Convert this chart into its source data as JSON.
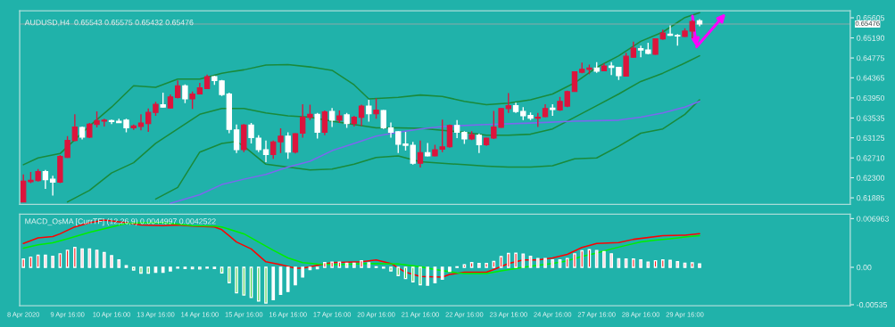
{
  "chart_data": [
    {
      "type": "candlestick",
      "title": "AUDUSD,H4  0.65543 0.65575 0.65432 0.65476",
      "categories": [
        "8 Apr 2020",
        null,
        null,
        null,
        null,
        null,
        "9 Apr 16:00",
        null,
        null,
        null,
        null,
        null,
        "10 Apr 16:00",
        null,
        null,
        null,
        null,
        null,
        "13 Apr 16:00",
        null,
        null,
        null,
        null,
        null,
        "14 Apr 16:00",
        null,
        null,
        null,
        null,
        null,
        "15 Apr 16:00",
        null,
        null,
        null,
        null,
        null,
        "16 Apr 16:00",
        null,
        null,
        null,
        null,
        null,
        "17 Apr 16:00",
        null,
        null,
        null,
        null,
        null,
        "20 Apr 16:00",
        null,
        null,
        null,
        null,
        null,
        "21 Apr 16:00",
        null,
        null,
        null,
        null,
        null,
        "22 Apr 16:00",
        null,
        null,
        null,
        null,
        null,
        "23 Apr 16:00",
        null,
        null,
        null,
        null,
        null,
        "24 Apr 16:00",
        null,
        null,
        null,
        null,
        null,
        "27 Apr 16:00",
        null,
        null,
        null,
        null,
        null,
        "28 Apr 16:00",
        null,
        null,
        null,
        null,
        null,
        "29 Apr 16:00",
        null,
        null,
        null,
        null,
        null,
        null,
        null,
        null,
        null,
        null,
        null,
        null,
        null,
        null,
        null,
        null,
        null,
        null,
        null,
        null,
        null,
        null
      ],
      "ohlc": [
        [
          0.618,
          0.6237,
          0.618,
          0.6223
        ],
        [
          0.6222,
          0.6242,
          0.6219,
          0.6225
        ],
        [
          0.6224,
          0.6248,
          0.6222,
          0.6243
        ],
        [
          0.6243,
          0.6246,
          0.6207,
          0.6226
        ],
        [
          0.6227,
          0.6234,
          0.6193,
          0.6221
        ],
        [
          0.6221,
          0.6277,
          0.6219,
          0.6274
        ],
        [
          0.6272,
          0.6316,
          0.6271,
          0.6307
        ],
        [
          0.6307,
          0.6361,
          0.6305,
          0.6335
        ],
        [
          0.6334,
          0.6336,
          0.6309,
          0.6314
        ],
        [
          0.6314,
          0.6343,
          0.6312,
          0.6341
        ],
        [
          0.634,
          0.6367,
          0.6334,
          0.6348
        ],
        [
          0.6347,
          0.6352,
          0.6336,
          0.6349
        ],
        [
          0.6348,
          0.635,
          0.6341,
          0.6346
        ],
        [
          0.6347,
          0.6352,
          0.6343,
          0.6344
        ],
        [
          0.6349,
          0.6352,
          0.6324,
          0.6333
        ],
        [
          0.6333,
          0.634,
          0.6329,
          0.6337
        ],
        [
          0.6336,
          0.6361,
          0.6328,
          0.6343
        ],
        [
          0.6342,
          0.6373,
          0.6325,
          0.6365
        ],
        [
          0.6365,
          0.6387,
          0.6358,
          0.6382
        ],
        [
          0.6381,
          0.6406,
          0.6375,
          0.6376
        ],
        [
          0.6374,
          0.6402,
          0.6373,
          0.6397
        ],
        [
          0.6396,
          0.6431,
          0.6394,
          0.642
        ],
        [
          0.642,
          0.6423,
          0.6384,
          0.6393
        ],
        [
          0.6393,
          0.6408,
          0.6372,
          0.6403
        ],
        [
          0.6403,
          0.6426,
          0.6402,
          0.6416
        ],
        [
          0.6414,
          0.6443,
          0.6413,
          0.6439
        ],
        [
          0.6439,
          0.6441,
          0.6422,
          0.6431
        ],
        [
          0.643,
          0.6432,
          0.6399,
          0.6402
        ],
        [
          0.6403,
          0.6406,
          0.6322,
          0.633
        ],
        [
          0.6329,
          0.634,
          0.6281,
          0.6288
        ],
        [
          0.6288,
          0.6341,
          0.6283,
          0.6339
        ],
        [
          0.6339,
          0.6343,
          0.6301,
          0.6313
        ],
        [
          0.6312,
          0.6318,
          0.6283,
          0.6288
        ],
        [
          0.6288,
          0.6307,
          0.6262,
          0.6278
        ],
        [
          0.6278,
          0.6307,
          0.6269,
          0.6304
        ],
        [
          0.6304,
          0.6332,
          0.6281,
          0.6316
        ],
        [
          0.6316,
          0.6324,
          0.6269,
          0.6283
        ],
        [
          0.6283,
          0.6322,
          0.628,
          0.6321
        ],
        [
          0.6322,
          0.6382,
          0.6313,
          0.6355
        ],
        [
          0.6355,
          0.6381,
          0.6349,
          0.6361
        ],
        [
          0.6361,
          0.6364,
          0.6311,
          0.6324
        ],
        [
          0.6324,
          0.6369,
          0.6318,
          0.6366
        ],
        [
          0.6367,
          0.6374,
          0.6335,
          0.6349
        ],
        [
          0.6349,
          0.6369,
          0.6343,
          0.6358
        ],
        [
          0.636,
          0.6364,
          0.6333,
          0.6342
        ],
        [
          0.6342,
          0.6358,
          0.6336,
          0.6355
        ],
        [
          0.6355,
          0.6381,
          0.6337,
          0.6378
        ],
        [
          0.6378,
          0.6391,
          0.6346,
          0.6362
        ],
        [
          0.6362,
          0.6394,
          0.6352,
          0.637
        ],
        [
          0.6369,
          0.637,
          0.6331,
          0.6333
        ],
        [
          0.6333,
          0.6344,
          0.6313,
          0.6324
        ],
        [
          0.6325,
          0.6326,
          0.6281,
          0.6299
        ],
        [
          0.63,
          0.6325,
          0.6286,
          0.6297
        ],
        [
          0.6297,
          0.6304,
          0.6257,
          0.626
        ],
        [
          0.626,
          0.6307,
          0.6251,
          0.6282
        ],
        [
          0.6282,
          0.6302,
          0.6274,
          0.6275
        ],
        [
          0.6275,
          0.6298,
          0.6274,
          0.6288
        ],
        [
          0.6289,
          0.635,
          0.6283,
          0.6294
        ],
        [
          0.6294,
          0.634,
          0.6292,
          0.6338
        ],
        [
          0.6338,
          0.6349,
          0.6312,
          0.6324
        ],
        [
          0.6324,
          0.6326,
          0.63,
          0.631
        ],
        [
          0.631,
          0.6326,
          0.6308,
          0.6319
        ],
        [
          0.6318,
          0.6321,
          0.6281,
          0.6298
        ],
        [
          0.6298,
          0.6313,
          0.6296,
          0.6312
        ],
        [
          0.6312,
          0.6368,
          0.631,
          0.6335
        ],
        [
          0.6334,
          0.6374,
          0.6333,
          0.6373
        ],
        [
          0.6373,
          0.6405,
          0.6364,
          0.6379
        ],
        [
          0.6379,
          0.6385,
          0.6364,
          0.6367
        ],
        [
          0.6367,
          0.6376,
          0.6349,
          0.6358
        ],
        [
          0.6359,
          0.6365,
          0.6349,
          0.6353
        ],
        [
          0.6353,
          0.6364,
          0.6335,
          0.6355
        ],
        [
          0.6356,
          0.6382,
          0.6355,
          0.6373
        ],
        [
          0.6374,
          0.6382,
          0.6358,
          0.6371
        ],
        [
          0.637,
          0.6397,
          0.6368,
          0.6388
        ],
        [
          0.6378,
          0.641,
          0.6376,
          0.6408
        ],
        [
          0.6408,
          0.645,
          0.6408,
          0.6449
        ],
        [
          0.6448,
          0.6468,
          0.6446,
          0.6454
        ],
        [
          0.6454,
          0.6464,
          0.6444,
          0.6457
        ],
        [
          0.6457,
          0.6469,
          0.6447,
          0.645
        ],
        [
          0.6451,
          0.6466,
          0.645,
          0.6461
        ],
        [
          0.6461,
          0.6469,
          0.6442,
          0.6458
        ],
        [
          0.6458,
          0.6459,
          0.6432,
          0.6441
        ],
        [
          0.644,
          0.6488,
          0.6439,
          0.6481
        ],
        [
          0.6479,
          0.6511,
          0.6478,
          0.6498
        ],
        [
          0.6497,
          0.6503,
          0.6479,
          0.6494
        ],
        [
          0.6494,
          0.6509,
          0.6485,
          0.6487
        ],
        [
          0.6485,
          0.6518,
          0.6484,
          0.6517
        ],
        [
          0.6517,
          0.6536,
          0.6515,
          0.6529
        ],
        [
          0.6527,
          0.6545,
          0.6523,
          0.6524
        ],
        [
          0.6524,
          0.6527,
          0.6503,
          0.6523
        ],
        [
          0.6522,
          0.6539,
          0.6521,
          0.6533
        ],
        [
          0.6533,
          0.6556,
          0.6518,
          0.6553
        ],
        [
          0.65543,
          0.65575,
          0.65432,
          0.65476
        ],
        null,
        null,
        null,
        null,
        null,
        null,
        null,
        null,
        null,
        null,
        null,
        null,
        null,
        null,
        null,
        null,
        null,
        null,
        null,
        null
      ],
      "colors": [
        "#dc143c",
        "#dc143c",
        "#dc143c",
        "#ffffff",
        "#ffffff",
        "#dc143c",
        "#dc143c",
        "#dc143c",
        "#ffffff",
        "#dc143c",
        "#dc143c",
        "#dc143c",
        "#ffffff",
        "#ffffff",
        "#ffffff",
        "#dc143c",
        "#dc143c",
        "#dc143c",
        "#dc143c",
        "#ffffff",
        "#dc143c",
        "#dc143c",
        "#ffffff",
        "#dc143c",
        "#dc143c",
        "#dc143c",
        "#ffffff",
        "#ffffff",
        "#ffffff",
        "#ffffff",
        "#dc143c",
        "#ffffff",
        "#ffffff",
        "#ffffff",
        "#dc143c",
        "#dc143c",
        "#ffffff",
        "#dc143c",
        "#dc143c",
        "#dc143c",
        "#ffffff",
        "#dc143c",
        "#ffffff",
        "#dc143c",
        "#ffffff",
        "#dc143c",
        "#dc143c",
        "#ffffff",
        "#dc143c",
        "#ffffff",
        "#ffffff",
        "#ffffff",
        "#ffffff",
        "#ffffff",
        "#dc143c",
        "#ffffff",
        "#dc143c",
        "#dc143c",
        "#dc143c",
        "#ffffff",
        "#ffffff",
        "#dc143c",
        "#ffffff",
        "#dc143c",
        "#dc143c",
        "#dc143c",
        "#dc143c",
        "#ffffff",
        "#ffffff",
        "#ffffff",
        "#dc143c",
        "#dc143c",
        "#ffffff",
        "#dc143c",
        "#dc143c",
        "#dc143c",
        "#dc143c",
        "#dc143c",
        "#ffffff",
        "#dc143c",
        "#ffffff",
        "#ffffff",
        "#dc143c",
        "#dc143c",
        "#ffffff",
        "#ffffff",
        "#dc143c",
        "#dc143c",
        "#ffffff",
        "#ffffff",
        "#dc143c",
        "#dc143c",
        "#ffffff",
        null,
        null,
        null,
        null,
        null,
        null,
        null,
        null,
        null,
        null,
        null,
        null,
        null,
        null,
        null,
        null,
        null,
        null,
        null,
        null
      ],
      "series": [
        {
          "type": "line",
          "color": "#1a8a3a",
          "values": [
            0.6257,
            null,
            0.6271,
            null,
            null,
            0.628,
            null,
            null,
            null,
            0.6337,
            null,
            null,
            0.6376,
            null,
            null,
            0.642,
            null,
            null,
            0.6417,
            null,
            null,
            0.6434,
            null,
            null,
            0.6434,
            null,
            null,
            0.6446,
            null,
            null,
            0.6453,
            null,
            null,
            0.6463,
            null,
            null,
            0.6464,
            null,
            null,
            0.6459,
            null,
            null,
            0.6452,
            null,
            null,
            0.6422,
            null,
            0.6393,
            null,
            null,
            null,
            0.6396,
            null,
            null,
            0.6401,
            null,
            null,
            0.6398,
            null,
            null,
            0.6388,
            null,
            null,
            0.6381,
            null,
            null,
            0.6384,
            null,
            null,
            0.6391,
            null,
            null,
            0.6403,
            null,
            null,
            0.6426,
            null,
            null,
            0.6458,
            null,
            null,
            0.6482,
            null,
            null,
            0.6512,
            null,
            null,
            0.6531,
            null,
            null,
            0.6561,
            null,
            0.6571,
            null,
            null,
            null,
            null,
            null,
            null,
            null,
            null,
            null,
            null,
            null,
            null,
            null,
            null,
            null,
            null,
            null,
            null,
            null,
            null
          ]
        },
        {
          "type": "line",
          "color": "#1a8a3a",
          "values": [
            null,
            null,
            null,
            null,
            null,
            null,
            0.618,
            null,
            null,
            0.6204,
            null,
            null,
            0.624,
            null,
            null,
            0.6261,
            null,
            null,
            0.6301,
            null,
            null,
            0.6331,
            null,
            null,
            0.6361,
            null,
            null,
            0.6373,
            null,
            null,
            0.6373,
            null,
            null,
            0.6364,
            null,
            null,
            0.6358,
            null,
            null,
            0.6355,
            null,
            null,
            0.6347,
            null,
            null,
            0.634,
            null,
            null,
            0.6333,
            null,
            null,
            0.6333,
            null,
            null,
            0.6332,
            null,
            null,
            0.6328,
            null,
            null,
            0.6324,
            null,
            null,
            0.6318,
            null,
            null,
            0.6318,
            null,
            null,
            0.632,
            null,
            null,
            0.6331,
            null,
            null,
            0.6355,
            null,
            null,
            0.6379,
            null,
            null,
            0.6403,
            null,
            null,
            0.6429,
            null,
            null,
            0.6446,
            null,
            null,
            0.6467,
            null,
            0.6482,
            null,
            null,
            null,
            null,
            null,
            null,
            null,
            null,
            null,
            null,
            null,
            null,
            null,
            null,
            null,
            null,
            null,
            null,
            null,
            null
          ]
        },
        {
          "type": "line",
          "color": "#1a8a3a",
          "values": [
            null,
            null,
            null,
            null,
            null,
            null,
            null,
            null,
            null,
            null,
            null,
            null,
            null,
            null,
            null,
            null,
            null,
            null,
            0.6186,
            null,
            null,
            0.621,
            null,
            null,
            0.6283,
            null,
            null,
            0.6301,
            null,
            0.6305,
            0.6295,
            null,
            null,
            0.6258,
            null,
            null,
            0.6252,
            null,
            null,
            0.6246,
            null,
            null,
            0.6248,
            null,
            null,
            0.6258,
            null,
            null,
            0.6272,
            null,
            null,
            0.6275,
            null,
            null,
            0.6263,
            null,
            null,
            0.626,
            null,
            null,
            0.6257,
            null,
            null,
            0.6254,
            null,
            null,
            0.6252,
            null,
            null,
            0.6252,
            null,
            null,
            0.6255,
            null,
            null,
            0.6269,
            null,
            null,
            0.6271,
            null,
            null,
            0.6295,
            null,
            null,
            0.6322,
            null,
            null,
            0.6331,
            null,
            null,
            0.6361,
            null,
            0.6391,
            null,
            null,
            null,
            null,
            null,
            null,
            null,
            null,
            null,
            null,
            null,
            null,
            null,
            null,
            null,
            null,
            null,
            null,
            null,
            null
          ]
        },
        {
          "type": "line",
          "color": "#7b68ee",
          "values": [
            null,
            null,
            null,
            null,
            null,
            null,
            null,
            null,
            null,
            null,
            null,
            null,
            null,
            null,
            null,
            null,
            null,
            null,
            null,
            null,
            0.6177,
            null,
            null,
            null,
            0.6195,
            null,
            null,
            0.6216,
            null,
            null,
            0.6227,
            null,
            null,
            0.6237,
            null,
            null,
            0.6252,
            null,
            null,
            0.6264,
            null,
            null,
            0.6286,
            null,
            null,
            0.6301,
            null,
            null,
            0.6316,
            null,
            null,
            0.6324,
            null,
            null,
            0.6331,
            null,
            null,
            0.6336,
            null,
            null,
            null,
            null,
            null,
            0.634,
            null,
            null,
            null,
            null,
            null,
            0.6343,
            null,
            null,
            null,
            null,
            null,
            0.6347,
            null,
            null,
            null,
            null,
            null,
            0.6349,
            null,
            null,
            0.6355,
            null,
            null,
            0.6364,
            null,
            null,
            0.6376,
            null,
            0.6388,
            null,
            null,
            null,
            null,
            null,
            null,
            null,
            null,
            null,
            null,
            null,
            null,
            null,
            null,
            null,
            null,
            null,
            null,
            null,
            null
          ]
        }
      ],
      "ref_lines": [
        {
          "axis": "y",
          "value": 0.65476,
          "label": "0.65476",
          "color": "#8fa8a8"
        }
      ],
      "ylim": [
        0.6175,
        0.6575
      ],
      "yticks": [
        0.61885,
        {
          "value": 0.623,
          "label": "0.62300"
        },
        {
          "value": 0.6271,
          "label": "0.62710"
        },
        0.63125,
        0.63535,
        {
          "value": 0.6395,
          "label": "0.63950"
        },
        0.64365,
        0.64775,
        {
          "value": 0.6519,
          "label": "0.65190"
        },
        0.65605
      ],
      "tick_labels": "y"
    },
    {
      "type": "bar",
      "title": "MACD_OsMA [CurrTF] (12,26,9) 0.0044997 0.0042522",
      "series": [
        {
          "type": "bar",
          "values": [
            0.00118,
            0.00145,
            0.00173,
            0.00173,
            0.00157,
            0.00193,
            0.00244,
            0.00283,
            0.00263,
            0.00263,
            0.00244,
            0.00212,
            0.00165,
            0.00106,
            0.00024,
            -0.00039,
            -0.00083,
            -0.00083,
            -0.00071,
            -0.00071,
            -0.00051,
            -0.0001,
            -0.00016,
            -0.0002,
            -0.00024,
            -0.0001,
            -0.00016,
            -0.00079,
            -0.0022,
            -0.00365,
            -0.00397,
            -0.00432,
            -0.00483,
            -0.00511,
            -0.00464,
            -0.00385,
            -0.00346,
            -0.00248,
            -0.00138,
            -0.00031,
            -0.0002,
            0.00067,
            0.00075,
            0.00075,
            0.00059,
            0.00059,
            0.00094,
            0.00063,
            8e-05,
            -0.0001,
            -0.00051,
            -0.00118,
            -0.00161,
            -0.00208,
            -0.00248,
            -0.00255,
            -0.0022,
            -0.00169,
            -0.00059,
            8e-05,
            0.00035,
            0.00067,
            0.00055,
            0.00055,
            0.00083,
            0.00153,
            0.00197,
            0.002,
            0.00189,
            0.00157,
            0.00126,
            0.00126,
            0.00106,
            0.00106,
            0.00126,
            0.00193,
            0.00236,
            0.00252,
            0.0024,
            0.00224,
            0.00193,
            0.00122,
            0.00118,
            0.00118,
            0.00106,
            0.00075,
            0.00094,
            0.00106,
            0.00098,
            0.00079,
            0.00059,
            0.00063,
            0.00047,
            null,
            null,
            null,
            null,
            null,
            null,
            null,
            null,
            null,
            null,
            null,
            null,
            null,
            null,
            null,
            null,
            null,
            null,
            null,
            null
          ],
          "colors": [
            "#ff0000",
            "#ff0000",
            "#ff0000",
            "#ffc0cb",
            "#ffc0cb",
            "#ff0000",
            "#ff0000",
            "#ff0000",
            "#ffc0cb",
            "#ffc0cb",
            "#ffc0cb",
            "#ffc0cb",
            "#ffc0cb",
            "#ffc0cb",
            "#ffc0cb",
            "#32cd32",
            "#32cd32",
            "#32cd32",
            "#ffffff",
            "#ffffff",
            "#ffffff",
            "#ffffff",
            "#32cd32",
            "#32cd32",
            "#32cd32",
            "#ffffff",
            "#32cd32",
            "#32cd32",
            "#32cd32",
            "#32cd32",
            "#32cd32",
            "#32cd32",
            "#32cd32",
            "#32cd32",
            "#ffffff",
            "#ffffff",
            "#ffffff",
            "#ffffff",
            "#ffffff",
            "#ffffff",
            "#ffffff",
            "#ff0000",
            "#ff0000",
            "#ff0000",
            "#ffc0cb",
            "#ffc0cb",
            "#ff0000",
            "#ffc0cb",
            "#ffc0cb",
            "#ffffff",
            "#32cd32",
            "#32cd32",
            "#32cd32",
            "#32cd32",
            "#32cd32",
            "#ffffff",
            "#ffffff",
            "#ffffff",
            "#ffffff",
            "#ff0000",
            "#ff0000",
            "#ff0000",
            "#ffc0cb",
            "#ff0000",
            "#ff0000",
            "#ff0000",
            "#ff0000",
            "#ff0000",
            "#ffc0cb",
            "#ffc0cb",
            "#ffc0cb",
            "#ffc0cb",
            "#ffc0cb",
            "#ffc0cb",
            "#ff0000",
            "#ff0000",
            "#ff0000",
            "#ff0000",
            "#ffc0cb",
            "#ffc0cb",
            "#ffc0cb",
            "#ffc0cb",
            "#ffc0cb",
            "#ff0000",
            "#ffc0cb",
            "#ffc0cb",
            "#ff0000",
            "#ff0000",
            "#ffc0cb",
            "#ffc0cb",
            "#ffc0cb",
            "#ff0000",
            "#ffc0cb",
            null,
            null,
            null,
            null,
            null,
            null,
            null,
            null,
            null,
            null,
            null,
            null,
            null,
            null,
            null,
            null,
            null,
            null,
            null,
            null
          ]
        },
        {
          "type": "line",
          "color": "#ff0000",
          "values": [
            0.00342,
            null,
            0.0042,
            null,
            0.0044,
            0.0048,
            null,
            0.00578,
            null,
            0.00637,
            null,
            0.00676,
            null,
            null,
            0.00637,
            null,
            0.00605,
            null,
            null,
            0.00597,
            null,
            0.00605,
            null,
            0.0059,
            null,
            null,
            0.00578,
            0.00538,
            null,
            0.00362,
            null,
            0.00263,
            null,
            0.00079,
            null,
            0.00039,
            null,
            -0.00012,
            -0.00012,
            null,
            0.00028,
            null,
            0.00067,
            null,
            null,
            null,
            0.00079,
            null,
            0.00106,
            null,
            0.00055,
            null,
            -0.00071,
            null,
            -0.0013,
            null,
            null,
            -0.00141,
            -0.00102,
            null,
            -0.00071,
            null,
            null,
            -0.00071,
            -0.00031,
            null,
            0.00055,
            null,
            0.00106,
            null,
            0.00106,
            null,
            0.00134,
            null,
            0.00185,
            null,
            0.00283,
            null,
            0.00342,
            null,
            null,
            0.00354,
            null,
            0.004,
            null,
            null,
            null,
            0.00452,
            null,
            null,
            0.0046,
            null,
            0.0048,
            null,
            null,
            null,
            null,
            null,
            null,
            null,
            null,
            null,
            null,
            null,
            null,
            null,
            null,
            null,
            null,
            null,
            null,
            null,
            null
          ]
        },
        {
          "type": "line",
          "color": "#00ee00",
          "values": [
            0.00275,
            null,
            0.00322,
            null,
            0.0035,
            null,
            0.00409,
            null,
            null,
            0.00499,
            null,
            null,
            0.00578,
            null,
            0.00629,
            null,
            0.00637,
            null,
            null,
            0.00637,
            null,
            0.00617,
            null,
            0.00597,
            null,
            null,
            0.0059,
            0.00578,
            null,
            null,
            0.00479,
            null,
            0.00362,
            null,
            0.00244,
            null,
            0.00134,
            null,
            0.00067,
            null,
            0.00047,
            null,
            null,
            0.00039,
            null,
            null,
            null,
            0.00055,
            null,
            null,
            null,
            0.00047,
            null,
            null,
            8e-05,
            null,
            -0.00031,
            null,
            null,
            -0.00079,
            -0.0009,
            null,
            null,
            -0.0009,
            null,
            -0.00051,
            null,
            null,
            0,
            null,
            0.00028,
            null,
            0.00055,
            null,
            0.00094,
            null,
            0.00157,
            null,
            0.00204,
            null,
            0.00263,
            null,
            0.00314,
            null,
            0.00362,
            null,
            0.00389,
            null,
            0.00409,
            null,
            0.00432,
            null,
            0.00452,
            null,
            null,
            null,
            null,
            null,
            null,
            null,
            null,
            null,
            null,
            null,
            null,
            null,
            null,
            null,
            null,
            null,
            null,
            null,
            null
          ]
        }
      ],
      "ylim": [
        -0.0055,
        0.0076
      ],
      "yticks": [
        0.006963,
        {
          "value": 0,
          "label": "0.00"
        },
        {
          "value": -0.00535,
          "label": "-0.00535"
        }
      ]
    }
  ]
}
